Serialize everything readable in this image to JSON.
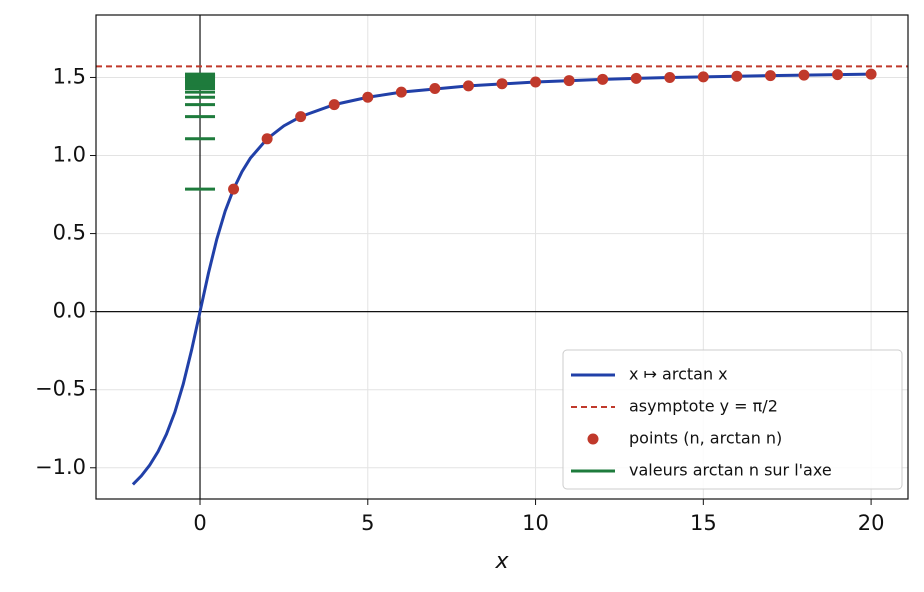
{
  "chart_data": {
    "type": "line",
    "xlabel": "x",
    "xlim": [
      -3.1,
      21.1
    ],
    "ylim": [
      -1.2,
      1.9
    ],
    "xticks": [
      0,
      5,
      10,
      15,
      20
    ],
    "yticks": [
      {
        "value": -1.0,
        "label": "−1.0"
      },
      {
        "value": -0.5,
        "label": "−0.5"
      },
      {
        "value": 0,
        "label": "0.0"
      },
      {
        "value": 0.5,
        "label": "0.5"
      },
      {
        "value": 1.0,
        "label": "1.0"
      },
      {
        "value": 1.5,
        "label": "1.5"
      }
    ],
    "grid": true,
    "legend": "lower right",
    "series": [
      {
        "name": "x ↦ arctan x",
        "color": "#2140a8",
        "style": "line",
        "x": [
          -2,
          -1.75,
          -1.5,
          -1.25,
          -1,
          -0.75,
          -0.5,
          -0.25,
          0,
          0.25,
          0.5,
          0.75,
          1,
          1.25,
          1.5,
          2,
          2.5,
          3,
          4,
          5,
          6,
          8,
          10,
          12,
          14,
          16,
          18,
          20
        ],
        "values": [
          -1.107,
          -1.052,
          -0.983,
          -0.896,
          -0.785,
          -0.644,
          -0.464,
          -0.245,
          0,
          0.245,
          0.464,
          0.644,
          0.785,
          0.896,
          0.983,
          1.107,
          1.19,
          1.249,
          1.326,
          1.373,
          1.406,
          1.446,
          1.471,
          1.488,
          1.5,
          1.508,
          1.515,
          1.521
        ]
      },
      {
        "name": "asymptote y = π/2",
        "color": "#c0392b",
        "style": "hline",
        "values": [
          1.5708
        ]
      },
      {
        "name": "points (n, arctan n)",
        "color": "#c0392b",
        "style": "scatter",
        "x": [
          1,
          2,
          3,
          4,
          5,
          6,
          7,
          8,
          9,
          10,
          11,
          12,
          13,
          14,
          15,
          16,
          17,
          18,
          19,
          20
        ],
        "values": [
          0.785,
          1.107,
          1.249,
          1.326,
          1.373,
          1.406,
          1.429,
          1.446,
          1.46,
          1.471,
          1.48,
          1.488,
          1.494,
          1.5,
          1.504,
          1.508,
          1.512,
          1.515,
          1.518,
          1.521
        ]
      },
      {
        "name": "valeurs arctan n sur l'axe",
        "color": "#1e7b3c",
        "style": "axis-ticks",
        "x": 0,
        "values": [
          0.785,
          1.107,
          1.249,
          1.326,
          1.373,
          1.406,
          1.429,
          1.446,
          1.46,
          1.471,
          1.48,
          1.488,
          1.494,
          1.5,
          1.504,
          1.508,
          1.512,
          1.515,
          1.518,
          1.521
        ]
      }
    ]
  }
}
